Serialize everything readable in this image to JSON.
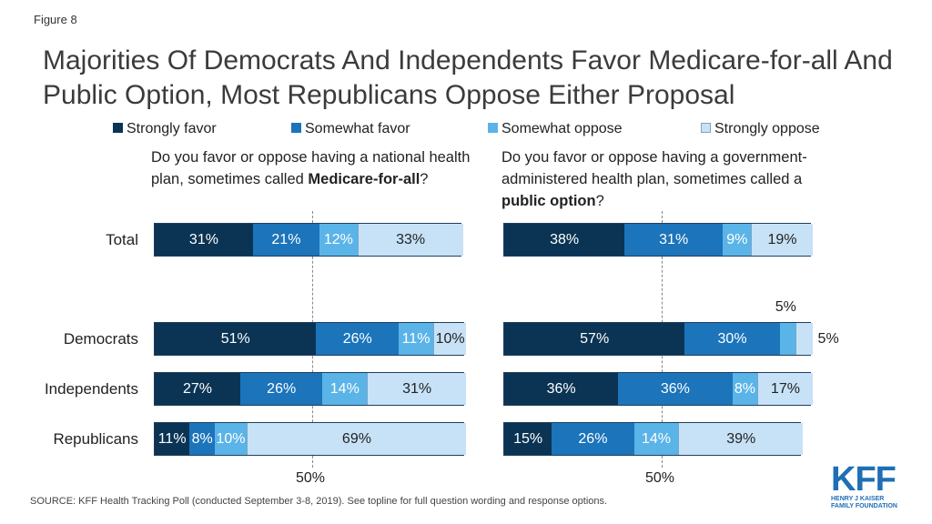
{
  "figure_label": "Figure 8",
  "colors": {
    "strongly_favor": "#0b3454",
    "somewhat_favor": "#1c74bb",
    "somewhat_oppose": "#5ab4e8",
    "strongly_oppose": "#c7e2f7"
  },
  "footer": {
    "source": "SOURCE: KFF Health Tracking Poll (conducted September 3-8, 2019). See topline for full question wording and response options.",
    "logo_main": "KFF",
    "logo_sub_1": "HENRY J KAISER",
    "logo_sub_2": "FAMILY FOUNDATION"
  },
  "chart_data": {
    "type": "bar",
    "stacked": true,
    "orientation": "horizontal",
    "title": "Majorities Of Democrats And Independents Favor Medicare-for-all And Public Option, Most Republicans Oppose Either Proposal",
    "legend": [
      "Strongly favor",
      "Somewhat favor",
      "Somewhat oppose",
      "Strongly oppose"
    ],
    "legend_position": "top",
    "grid": false,
    "categories": [
      "Total",
      "Democrats",
      "Independents",
      "Republicans"
    ],
    "reference_line_label": "50%",
    "panels": [
      {
        "question_pre": "Do you favor or oppose having a national health plan, sometimes called ",
        "question_bold": "Medicare-for-all",
        "question_post": "?",
        "series": [
          {
            "name": "Strongly favor",
            "values": [
              31,
              51,
              27,
              11
            ]
          },
          {
            "name": "Somewhat favor",
            "values": [
              21,
              26,
              26,
              8
            ]
          },
          {
            "name": "Somewhat oppose",
            "values": [
              12,
              11,
              14,
              10
            ]
          },
          {
            "name": "Strongly oppose",
            "values": [
              33,
              10,
              31,
              69
            ]
          }
        ]
      },
      {
        "question_pre": "Do you favor or oppose having a government-administered health plan, sometimes called a ",
        "question_bold": "public option",
        "question_post": "?",
        "series": [
          {
            "name": "Strongly favor",
            "values": [
              38,
              57,
              36,
              15
            ]
          },
          {
            "name": "Somewhat favor",
            "values": [
              31,
              30,
              36,
              26
            ]
          },
          {
            "name": "Somewhat oppose",
            "values": [
              9,
              5,
              8,
              14
            ]
          },
          {
            "name": "Strongly oppose",
            "values": [
              19,
              5,
              17,
              39
            ]
          }
        ]
      }
    ]
  }
}
